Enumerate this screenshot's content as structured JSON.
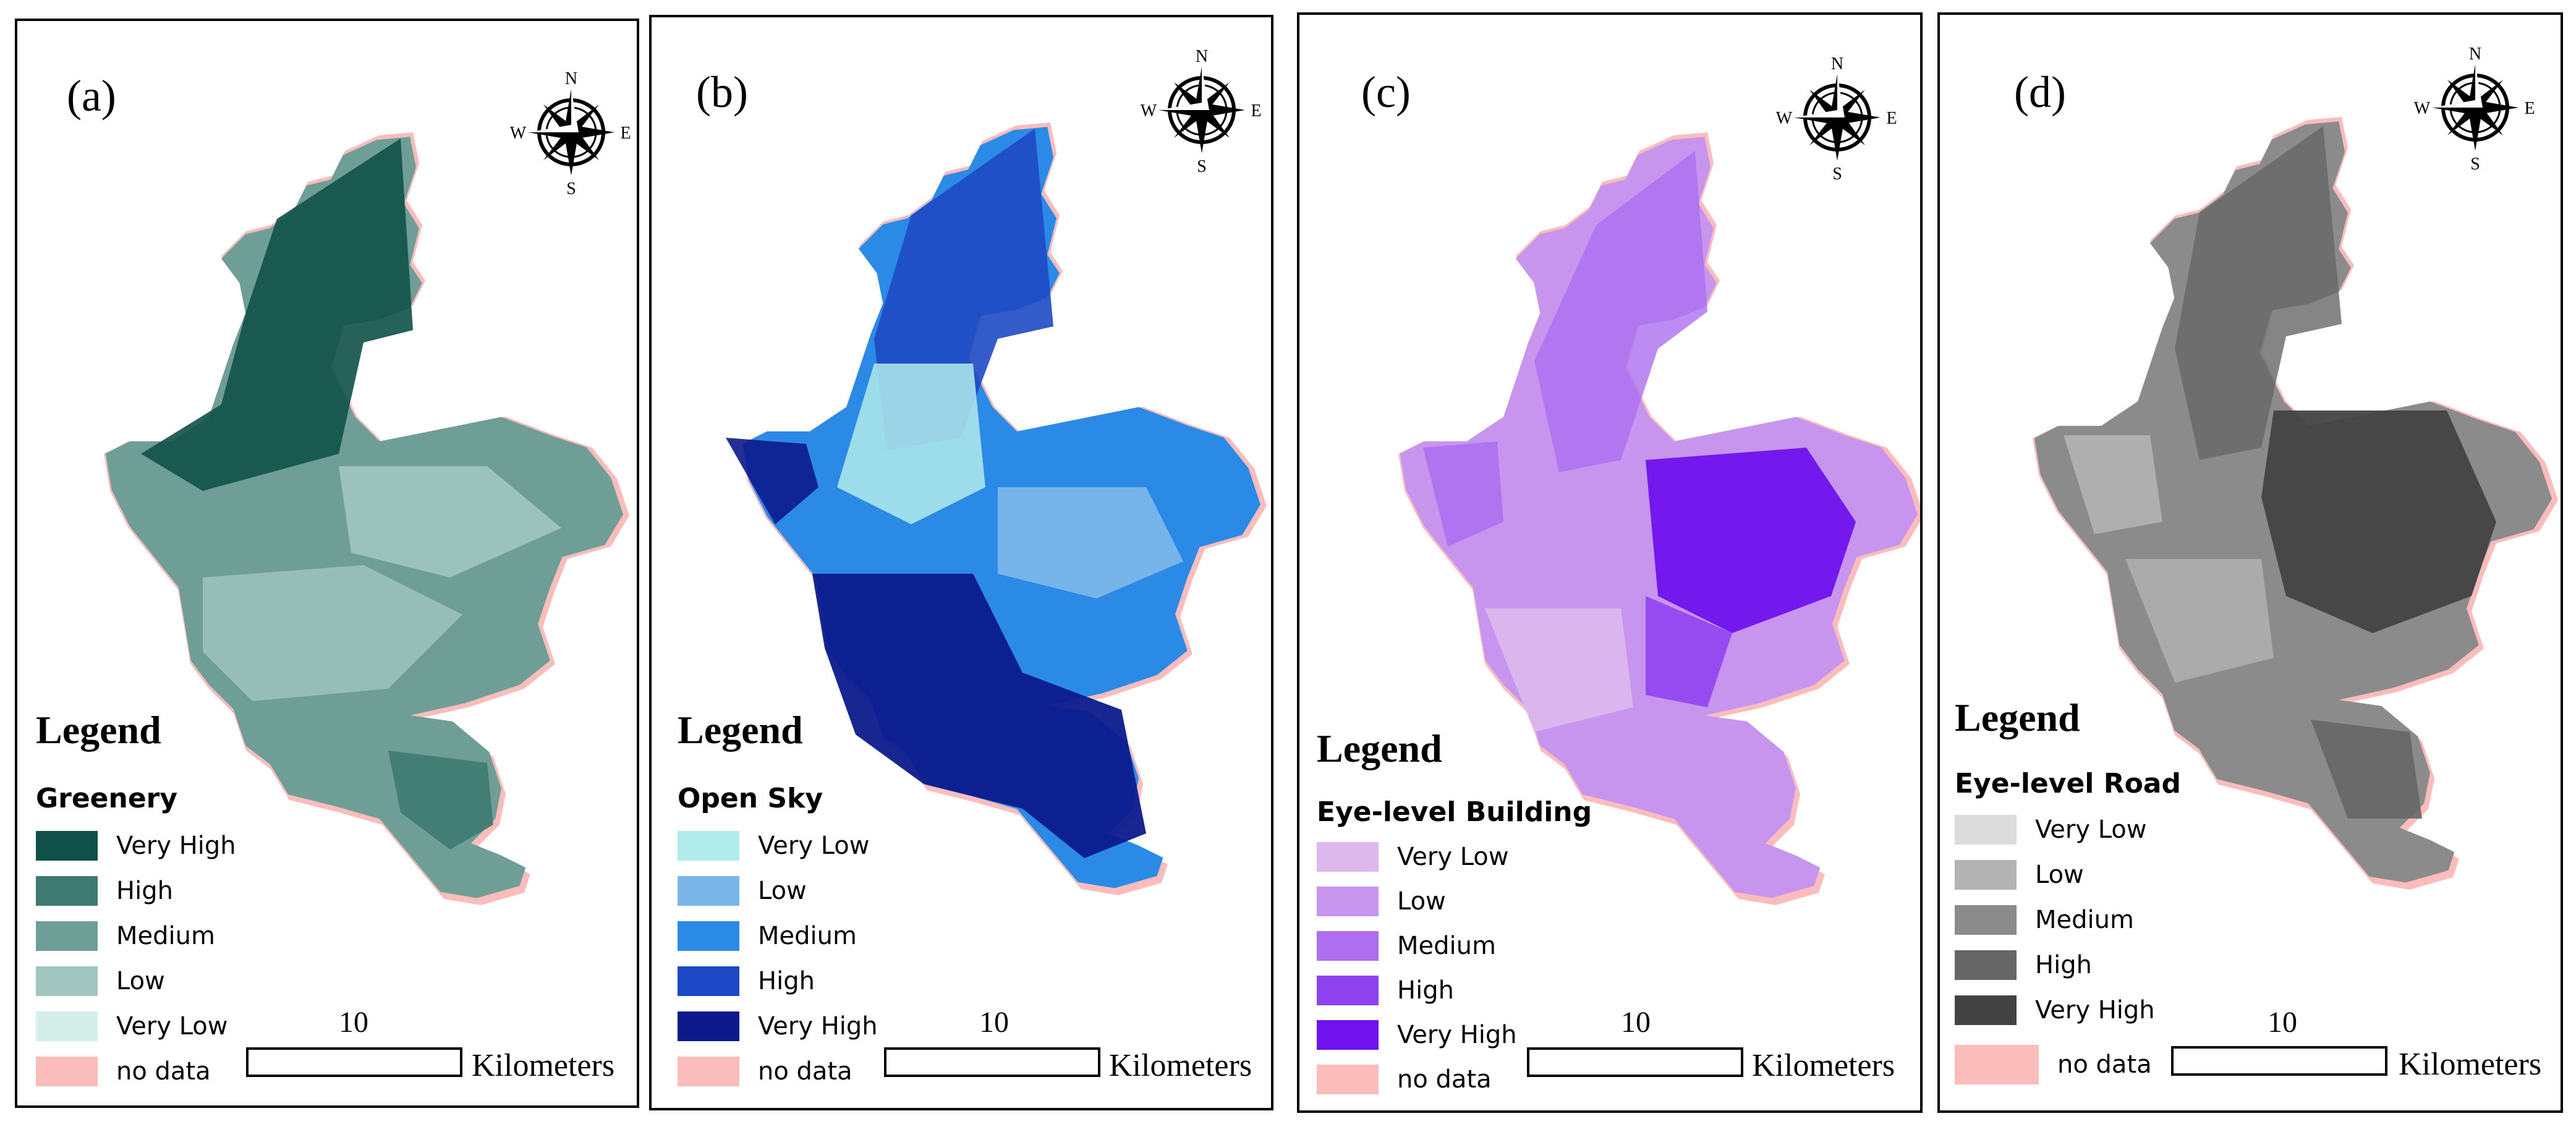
{
  "compass": {
    "n": "N",
    "s": "S",
    "e": "E",
    "w": "W"
  },
  "legend_title": "Legend",
  "scale": {
    "value": "10",
    "unit": "Kilometers"
  },
  "panels": [
    {
      "label": "(a)",
      "subtitle": "Greenery",
      "items": [
        {
          "label": "Very High",
          "color": "#0f5148"
        },
        {
          "label": "High",
          "color": "#3e7a71"
        },
        {
          "label": "Medium",
          "color": "#6f9e97"
        },
        {
          "label": "Low",
          "color": "#a0c6bf"
        },
        {
          "label": "Very Low",
          "color": "#d4efe9"
        },
        {
          "label": "no data",
          "color": "#fbbcbc"
        }
      ]
    },
    {
      "label": "(b)",
      "subtitle": "Open Sky",
      "items": [
        {
          "label": "Very Low",
          "color": "#b2ebeb"
        },
        {
          "label": "Low",
          "color": "#7bb6e9"
        },
        {
          "label": "Medium",
          "color": "#2a8ae6"
        },
        {
          "label": "High",
          "color": "#1e49c4"
        },
        {
          "label": "Very High",
          "color": "#0c1a8c"
        },
        {
          "label": "no data",
          "color": "#fbbcbc"
        }
      ]
    },
    {
      "label": "(c)",
      "subtitle": "Eye-level Building",
      "items": [
        {
          "label": "Very Low",
          "color": "#ddb8ec"
        },
        {
          "label": "Low",
          "color": "#c795ed"
        },
        {
          "label": "Medium",
          "color": "#ad6ff0"
        },
        {
          "label": "High",
          "color": "#8f42ef"
        },
        {
          "label": "Very High",
          "color": "#6f12ee"
        },
        {
          "label": "no data",
          "color": "#fbbcbc"
        }
      ]
    },
    {
      "label": "(d)",
      "subtitle": "Eye-level Road",
      "items": [
        {
          "label": "Very Low",
          "color": "#dcdcdc"
        },
        {
          "label": "Low",
          "color": "#b3b3b3"
        },
        {
          "label": "Medium",
          "color": "#8b8b8b"
        },
        {
          "label": "High",
          "color": "#666666"
        },
        {
          "label": "Very High",
          "color": "#434343"
        },
        {
          "label": "no data",
          "color": "#fbbcbc"
        }
      ]
    }
  ]
}
